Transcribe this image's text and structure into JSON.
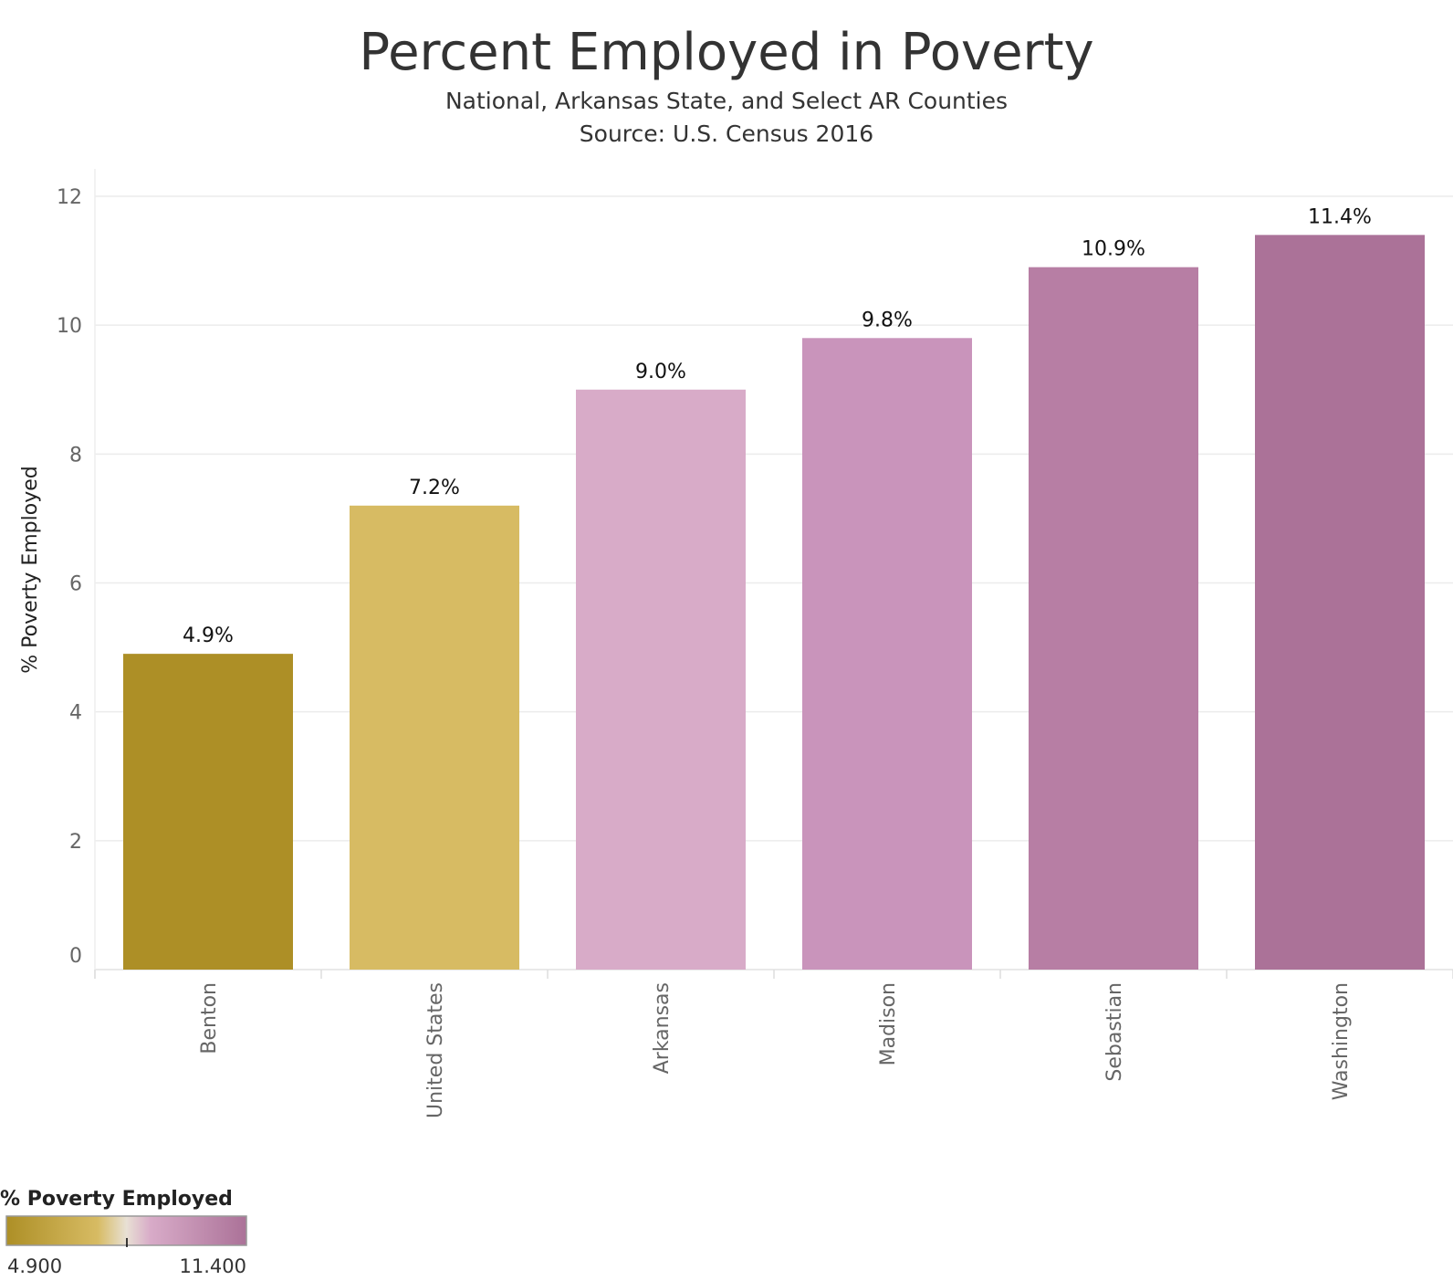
{
  "chart_data": {
    "type": "bar",
    "title": "Percent Employed in Poverty",
    "subtitle_lines": [
      "National, Arkansas State, and Select AR Counties",
      "Source: U.S. Census 2016"
    ],
    "xlabel": "",
    "ylabel": "% Poverty Employed",
    "ylim": [
      0,
      12
    ],
    "yticks": [
      0,
      2,
      4,
      6,
      8,
      10,
      12
    ],
    "grid": true,
    "categories": [
      "Benton",
      "United States",
      "Arkansas",
      "Madison",
      "Sebastian",
      "Washington"
    ],
    "values": [
      4.9,
      7.2,
      9.0,
      9.8,
      10.9,
      11.4
    ],
    "data_labels": [
      "4.9%",
      "7.2%",
      "9.0%",
      "9.8%",
      "10.9%",
      "11.4%"
    ],
    "colors": [
      "#ad8f26",
      "#d7bb63",
      "#d8abc8",
      "#c994bb",
      "#b77ea4",
      "#ab7298"
    ],
    "legend": {
      "title": "% Poverty Employed",
      "min_label": "4.900",
      "max_label": "11.400",
      "placement": "bottom-left",
      "gradient_colors": [
        "#ad8f26",
        "#d7bb63",
        "#e8e0d4",
        "#d8abc8",
        "#ab7298"
      ]
    }
  }
}
